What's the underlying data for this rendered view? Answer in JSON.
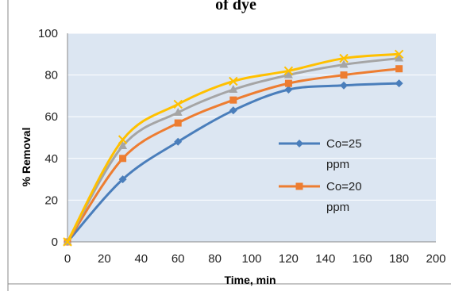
{
  "chart_data": {
    "type": "line",
    "title": "of dye",
    "xlabel": "Time, min",
    "ylabel": "% Removal",
    "xlim": [
      0,
      200
    ],
    "ylim": [
      0,
      100
    ],
    "x_ticks": [
      "0",
      "20",
      "40",
      "60",
      "80",
      "100",
      "120",
      "140",
      "160",
      "180",
      "200"
    ],
    "y_ticks": [
      "0",
      "20",
      "40",
      "60",
      "80",
      "100"
    ],
    "x": [
      0,
      30,
      60,
      90,
      120,
      150,
      180
    ],
    "grid": "horizontal",
    "legend_position": "right",
    "plot_background": "#dce6f2",
    "series": [
      {
        "name": "Co=25 ppm",
        "legend_lines": [
          "Co=25",
          "ppm"
        ],
        "color": "#4a7ebb",
        "marker": "diamond",
        "values": [
          0,
          30,
          48,
          63,
          73,
          75,
          76
        ]
      },
      {
        "name": "Co=20 ppm",
        "legend_lines": [
          "Co=20",
          "ppm"
        ],
        "color": "#ed7d31",
        "marker": "square",
        "values": [
          0,
          40,
          57,
          68,
          76,
          80,
          83
        ]
      },
      {
        "name": "",
        "legend_lines": [],
        "color": "#a5a5a5",
        "marker": "triangle",
        "values": [
          0,
          46,
          62,
          73,
          80,
          85,
          88
        ]
      },
      {
        "name": "",
        "legend_lines": [],
        "color": "#ffc000",
        "marker": "x",
        "values": [
          0,
          49,
          66,
          77,
          82,
          88,
          90
        ]
      }
    ]
  }
}
